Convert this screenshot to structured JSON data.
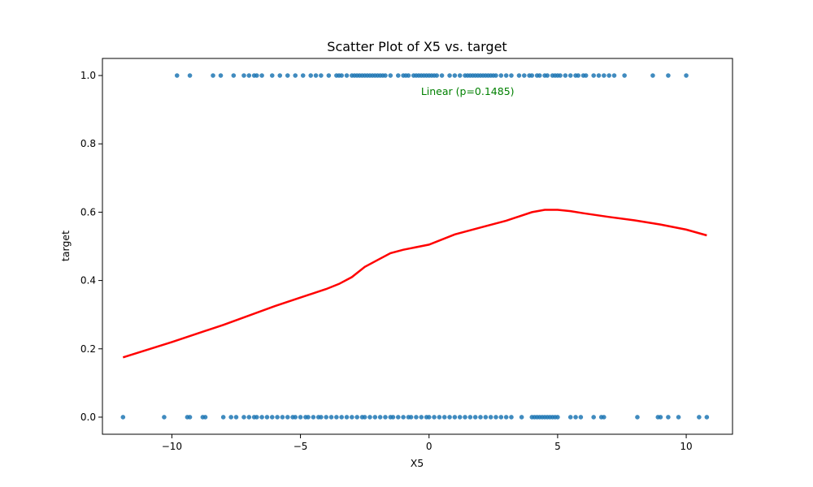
{
  "chart_data": {
    "type": "scatter",
    "title": "Scatter Plot of X5 vs. target",
    "xlabel": "X5",
    "ylabel": "target",
    "xlim": [
      -12.7,
      11.8
    ],
    "ylim": [
      -0.05,
      1.05
    ],
    "x_ticks": [
      -10,
      -5,
      0,
      5,
      10
    ],
    "x_tick_labels": [
      "−10",
      "−5",
      "0",
      "5",
      "10"
    ],
    "y_ticks": [
      0.0,
      0.2,
      0.4,
      0.6,
      0.8,
      1.0
    ],
    "y_tick_labels": [
      "0.0",
      "0.2",
      "0.4",
      "0.6",
      "0.8",
      "1.0"
    ],
    "grid": false,
    "annotation": {
      "text": "Linear (p=0.1485)",
      "x": 1.5,
      "y": 0.952,
      "color": "#008000"
    },
    "colors": {
      "points": "#1f77b4",
      "trend": "#ff0000"
    },
    "series": [
      {
        "kind": "points",
        "y": 1,
        "x": [
          -9.8,
          -9.3,
          -8.4,
          -8.1,
          -7.6,
          -7.2,
          -7.0,
          -6.8,
          -6.7,
          -6.5,
          -6.1,
          -5.8,
          -5.5,
          -5.2,
          -4.9,
          -4.6,
          -4.4,
          -4.2,
          -3.9,
          -3.6,
          -3.5,
          -3.4,
          -3.2,
          -3.0,
          -2.9,
          -2.8,
          -2.7,
          -2.6,
          -2.5,
          -2.4,
          -2.3,
          -2.2,
          -2.1,
          -2.0,
          -1.9,
          -1.8,
          -1.7,
          -1.5,
          -1.2,
          -1.0,
          -0.9,
          -0.8,
          -0.6,
          -0.5,
          -0.4,
          -0.3,
          -0.2,
          -0.1,
          0.0,
          0.1,
          0.2,
          0.3,
          0.5,
          0.8,
          1.0,
          1.2,
          1.4,
          1.5,
          1.6,
          1.7,
          1.8,
          1.9,
          2.0,
          2.1,
          2.2,
          2.3,
          2.4,
          2.5,
          2.6,
          2.8,
          3.0,
          3.2,
          3.5,
          3.7,
          3.9,
          4.0,
          4.2,
          4.3,
          4.5,
          4.6,
          4.8,
          4.9,
          5.0,
          5.1,
          5.3,
          5.5,
          5.7,
          5.8,
          6.0,
          6.1,
          6.4,
          6.6,
          6.8,
          7.0,
          7.2,
          7.6,
          8.7,
          9.3,
          10.0
        ]
      },
      {
        "kind": "points",
        "y": 0,
        "x": [
          -11.9,
          -10.3,
          -9.4,
          -9.3,
          -8.8,
          -8.7,
          -8.0,
          -7.7,
          -7.5,
          -7.2,
          -7.0,
          -6.8,
          -6.7,
          -6.5,
          -6.3,
          -6.1,
          -5.9,
          -5.7,
          -5.5,
          -5.3,
          -5.2,
          -5.0,
          -4.8,
          -4.7,
          -4.5,
          -4.3,
          -4.2,
          -4.0,
          -3.8,
          -3.6,
          -3.4,
          -3.2,
          -3.0,
          -2.8,
          -2.6,
          -2.5,
          -2.3,
          -2.1,
          -1.9,
          -1.7,
          -1.5,
          -1.4,
          -1.2,
          -1.0,
          -0.8,
          -0.7,
          -0.5,
          -0.3,
          -0.1,
          0.0,
          0.2,
          0.4,
          0.6,
          0.8,
          1.0,
          1.2,
          1.4,
          1.6,
          1.8,
          2.0,
          2.2,
          2.4,
          2.6,
          2.8,
          3.0,
          3.2,
          3.6,
          4.0,
          4.1,
          4.2,
          4.3,
          4.4,
          4.5,
          4.6,
          4.7,
          4.8,
          4.9,
          5.0,
          5.5,
          5.7,
          5.9,
          6.4,
          6.7,
          6.8,
          8.1,
          8.9,
          9.0,
          9.3,
          9.7,
          10.5,
          10.8
        ]
      },
      {
        "kind": "line",
        "x": [
          -11.9,
          -10.0,
          -8.0,
          -6.0,
          -5.0,
          -4.0,
          -3.5,
          -3.0,
          -2.5,
          -2.0,
          -1.5,
          -1.0,
          0.0,
          1.0,
          2.0,
          3.0,
          4.0,
          4.5,
          5.0,
          5.5,
          6.0,
          7.0,
          8.0,
          9.0,
          10.0,
          10.8
        ],
        "y": [
          0.175,
          0.22,
          0.27,
          0.325,
          0.35,
          0.375,
          0.39,
          0.41,
          0.44,
          0.46,
          0.48,
          0.49,
          0.505,
          0.535,
          0.555,
          0.575,
          0.6,
          0.607,
          0.607,
          0.603,
          0.597,
          0.586,
          0.576,
          0.564,
          0.549,
          0.532
        ]
      }
    ]
  }
}
